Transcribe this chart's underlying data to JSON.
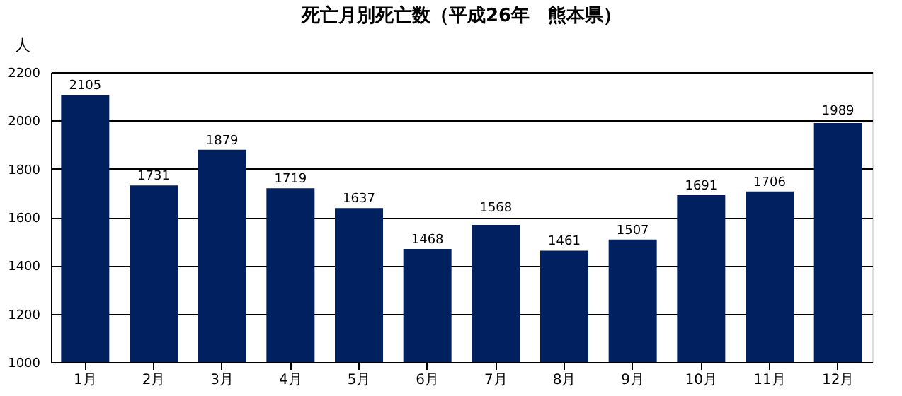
{
  "chart_data": {
    "type": "bar",
    "title": "死亡月別死亡数（平成26年　熊本県）",
    "ylabel": "人",
    "categories": [
      "1月",
      "2月",
      "3月",
      "4月",
      "5月",
      "6月",
      "7月",
      "8月",
      "9月",
      "10月",
      "11月",
      "12月"
    ],
    "values": [
      2105,
      1731,
      1879,
      1719,
      1637,
      1468,
      1568,
      1461,
      1507,
      1691,
      1706,
      1989
    ],
    "color": "#002060",
    "ylim": [
      1000,
      2200
    ],
    "yticks": [
      1000,
      1200,
      1400,
      1600,
      1800,
      2000,
      2200
    ],
    "grid": "y",
    "data_labels": true
  }
}
